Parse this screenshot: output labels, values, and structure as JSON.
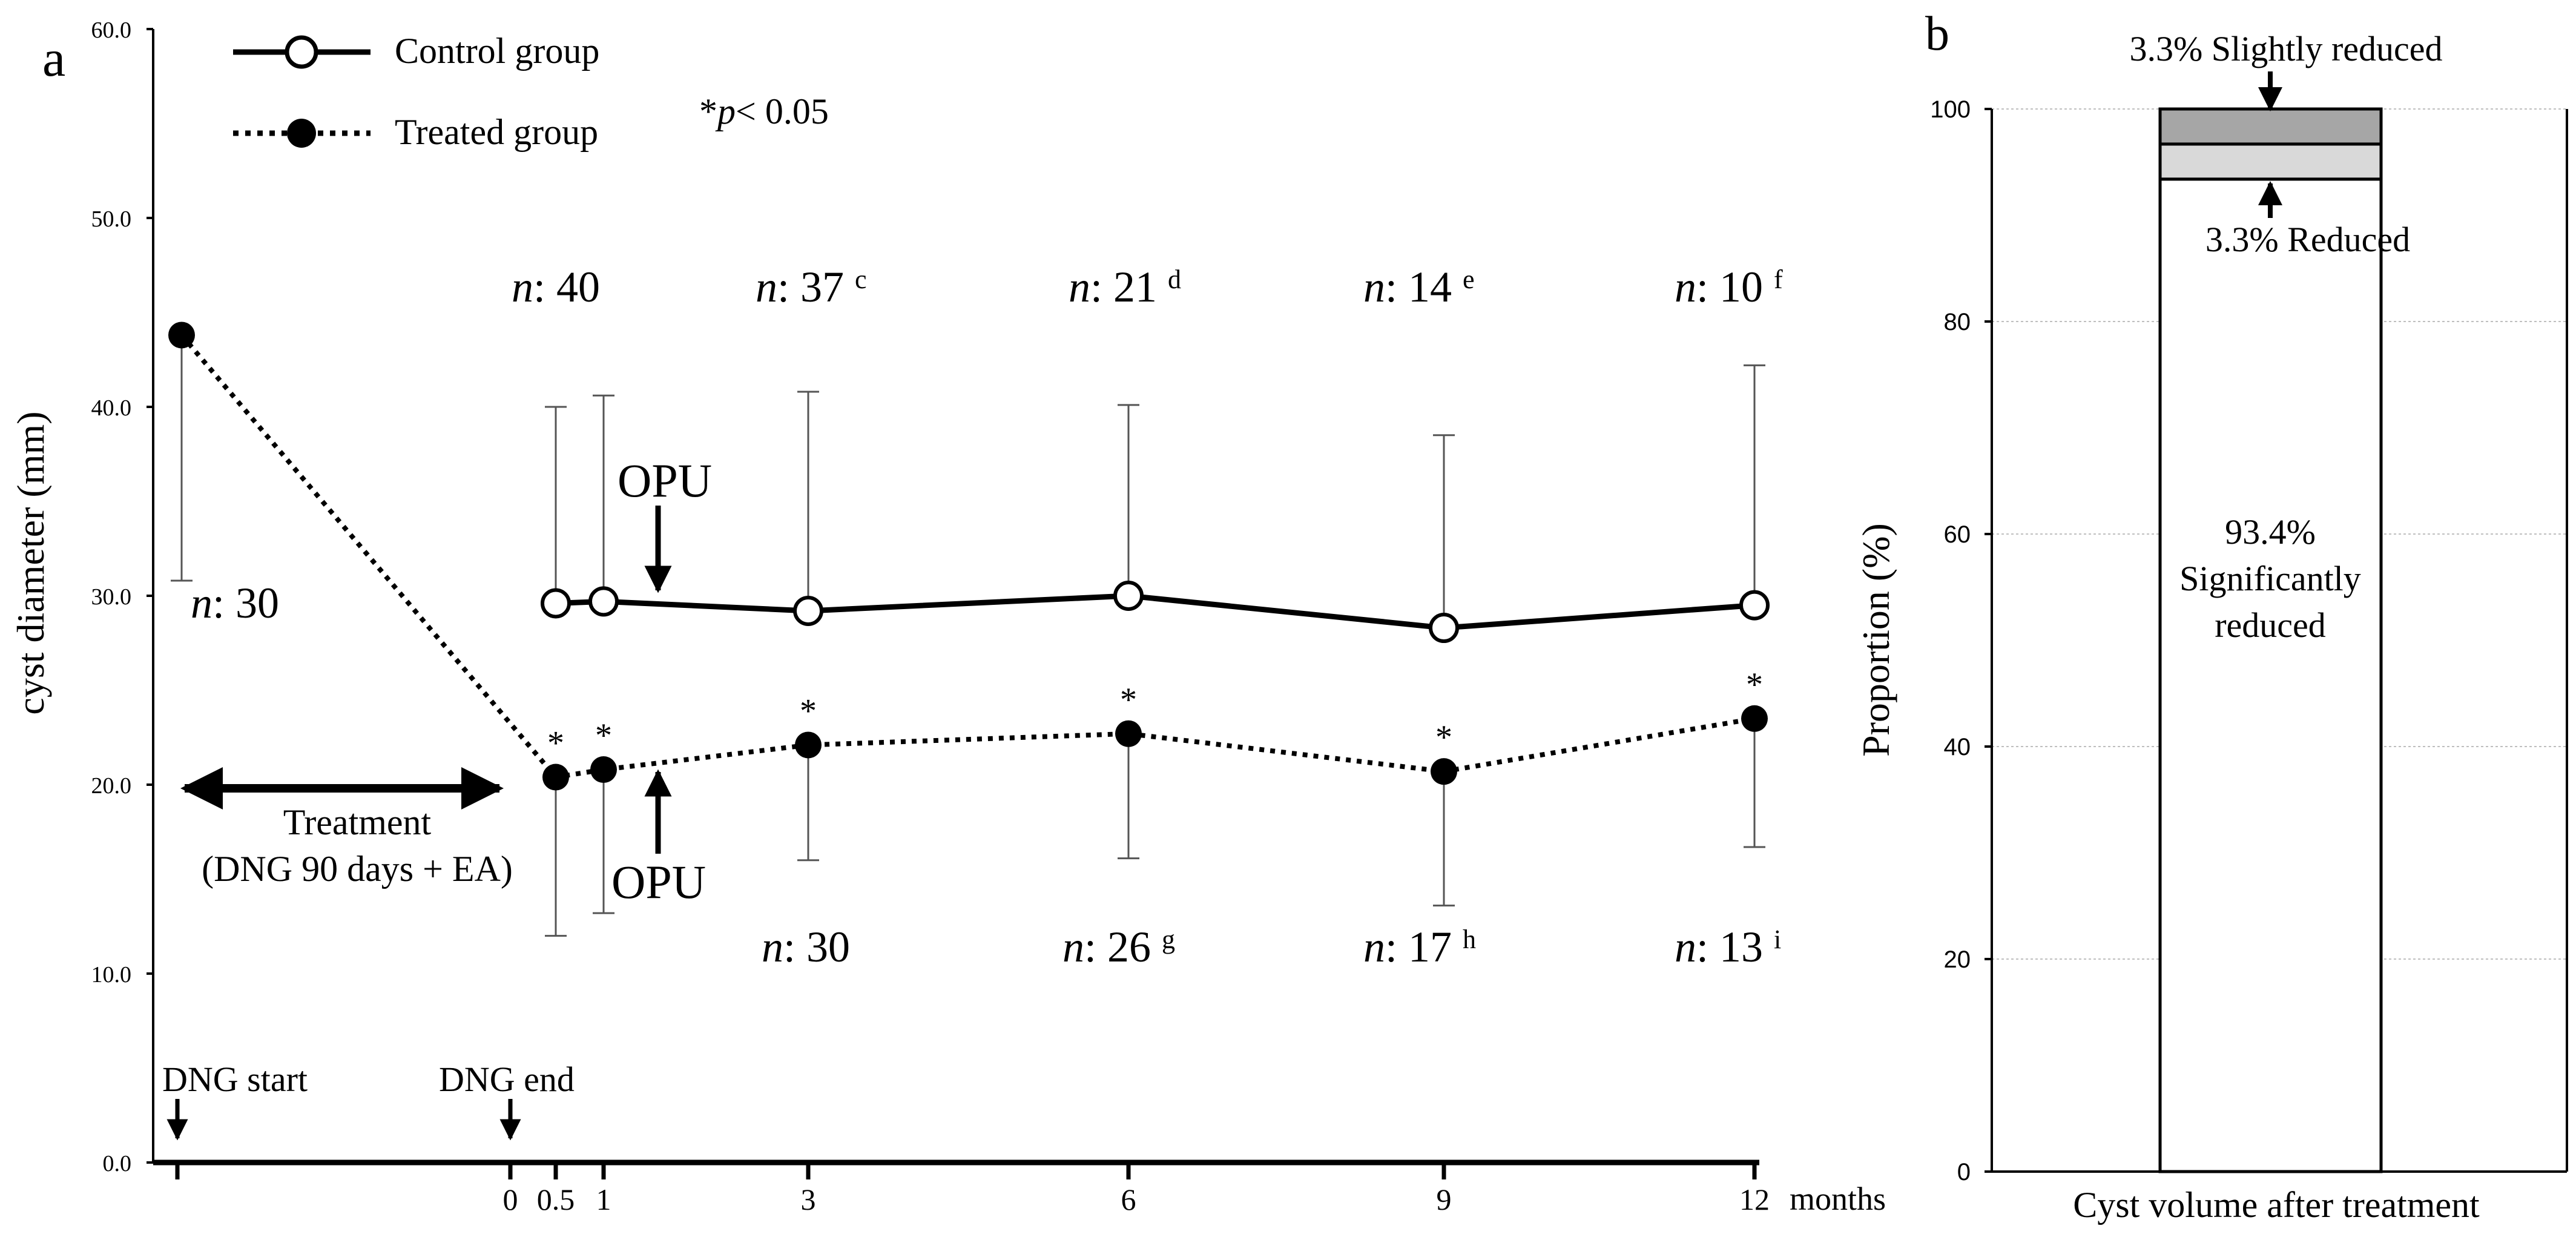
{
  "chart_data": [
    {
      "panel_label": "a",
      "type": "line",
      "ylabel": "cyst diameter (mm)",
      "xlabel": "months",
      "ylim": [
        0,
        60
      ],
      "y_ticks": [
        "0.0",
        "10.0",
        "20.0",
        "30.0",
        "40.0",
        "50.0",
        "60.0"
      ],
      "x_ticks": [
        "0",
        "0.5",
        "1",
        "3",
        "6",
        "9",
        "12"
      ],
      "legend": {
        "placement": "top-left",
        "control_label": "Control group",
        "treated_label": "Treated group",
        "significance": "*p< 0.05",
        "significance_star": "*",
        "significance_p": "p",
        "significance_rest": "< 0.05"
      },
      "series": [
        {
          "name": "Control group",
          "style": "solid, open circles",
          "color": "#000000",
          "x": [
            0.5,
            1,
            3,
            6,
            9,
            12
          ],
          "values": [
            29.6,
            29.7,
            29.2,
            30.0,
            28.3,
            29.5
          ],
          "error_upper": [
            40.0,
            40.6,
            40.8,
            40.1,
            38.5,
            42.2
          ],
          "n_labels": [
            {
              "n": "n",
              "rest": ": 40",
              "sup": ""
            },
            {
              "n": "n",
              "rest": ": 37",
              "sup": "c"
            },
            {
              "n": "n",
              "rest": ": 21",
              "sup": "d"
            },
            {
              "n": "n",
              "rest": ": 14",
              "sup": "e"
            },
            {
              "n": "n",
              "rest": ": 10",
              "sup": "f"
            }
          ]
        },
        {
          "name": "Treated group",
          "style": "dotted, filled circles",
          "color": "#000000",
          "x": [
            "DNG start",
            0.5,
            1,
            3,
            6,
            9,
            12
          ],
          "values": [
            43.8,
            20.4,
            20.8,
            22.1,
            22.7,
            20.7,
            23.5
          ],
          "error_upper": [
            43.8,
            20.4,
            20.8,
            22.1,
            22.7,
            20.7,
            23.5
          ],
          "error_lower": [
            30.8,
            12.0,
            13.2,
            16.0,
            16.1,
            13.6,
            16.7
          ],
          "significant": [
            false,
            true,
            true,
            true,
            true,
            true,
            true
          ],
          "n_labels": [
            {
              "n": "n",
              "rest": ": 30",
              "sup": ""
            },
            {
              "n": "n",
              "rest": ": 30",
              "sup": ""
            },
            {
              "n": "n",
              "rest": ": 26",
              "sup": "g"
            },
            {
              "n": "n",
              "rest": ": 17",
              "sup": "h"
            },
            {
              "n": "n",
              "rest": ": 13",
              "sup": "i"
            }
          ]
        }
      ],
      "annotations": {
        "opu": "OPU",
        "treatment_line1": "Treatment",
        "treatment_line2": "(DNG 90 days + EA)",
        "dng_start": "DNG start",
        "dng_end": "DNG end"
      }
    },
    {
      "panel_label": "b",
      "type": "bar",
      "stacked": true,
      "ylabel": "Proportion (%)",
      "xlabel": "Cyst volume after treatment",
      "ylim": [
        0,
        100
      ],
      "y_ticks": [
        "0",
        "20",
        "40",
        "60",
        "80",
        "100"
      ],
      "grid": true,
      "categories": [
        "Cyst volume after treatment"
      ],
      "series": [
        {
          "name": "Significantly reduced",
          "values": [
            93.4
          ],
          "color": "#ffffff"
        },
        {
          "name": "Reduced",
          "values": [
            3.3
          ],
          "color": "#d9d9d9"
        },
        {
          "name": "Slightly reduced",
          "values": [
            3.3
          ],
          "color": "#a6a6a6"
        }
      ],
      "labels": {
        "sig_pct": "93.4%",
        "sig_line1": "Significantly",
        "sig_line2": "reduced",
        "reduced": "3.3% Reduced",
        "slightly": "3.3%  Slightly reduced"
      }
    }
  ]
}
